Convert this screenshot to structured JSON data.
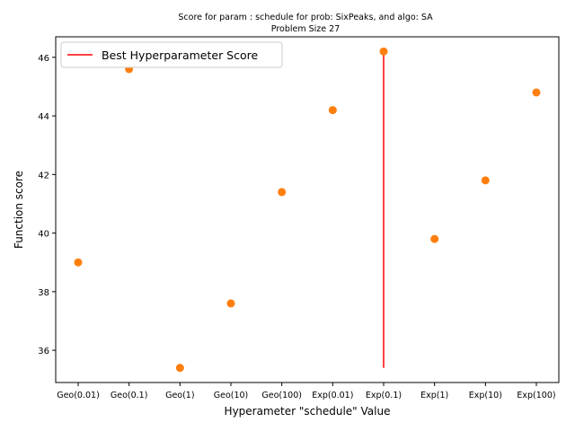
{
  "chart_data": {
    "type": "scatter",
    "title": "Score for param : schedule for prob: SixPeaks, and algo: SA",
    "subtitle": "Problem Size 27",
    "xlabel": "Hyperameter \"schedule\" Value",
    "ylabel": "Function score",
    "categories": [
      "Geo(0.01)",
      "Geo(0.1)",
      "Geo(1)",
      "Geo(10)",
      "Geo(100)",
      "Exp(0.01)",
      "Exp(0.1)",
      "Exp(1)",
      "Exp(10)",
      "Exp(100)"
    ],
    "values": [
      39.0,
      45.6,
      35.4,
      37.6,
      41.4,
      44.2,
      46.2,
      39.8,
      41.8,
      44.8
    ],
    "ylim": [
      34.9,
      46.7
    ],
    "yticks": [
      "36",
      "38",
      "40",
      "42",
      "44",
      "46"
    ],
    "best_line": {
      "name": "Best Hyperparameter Score",
      "category": "Exp(0.1)",
      "y_start": 35.4,
      "y_end": 46.2,
      "color": "#ff0000"
    },
    "marker_color": "#ff7f0e",
    "grid": false,
    "legend_position": "upper-left"
  }
}
